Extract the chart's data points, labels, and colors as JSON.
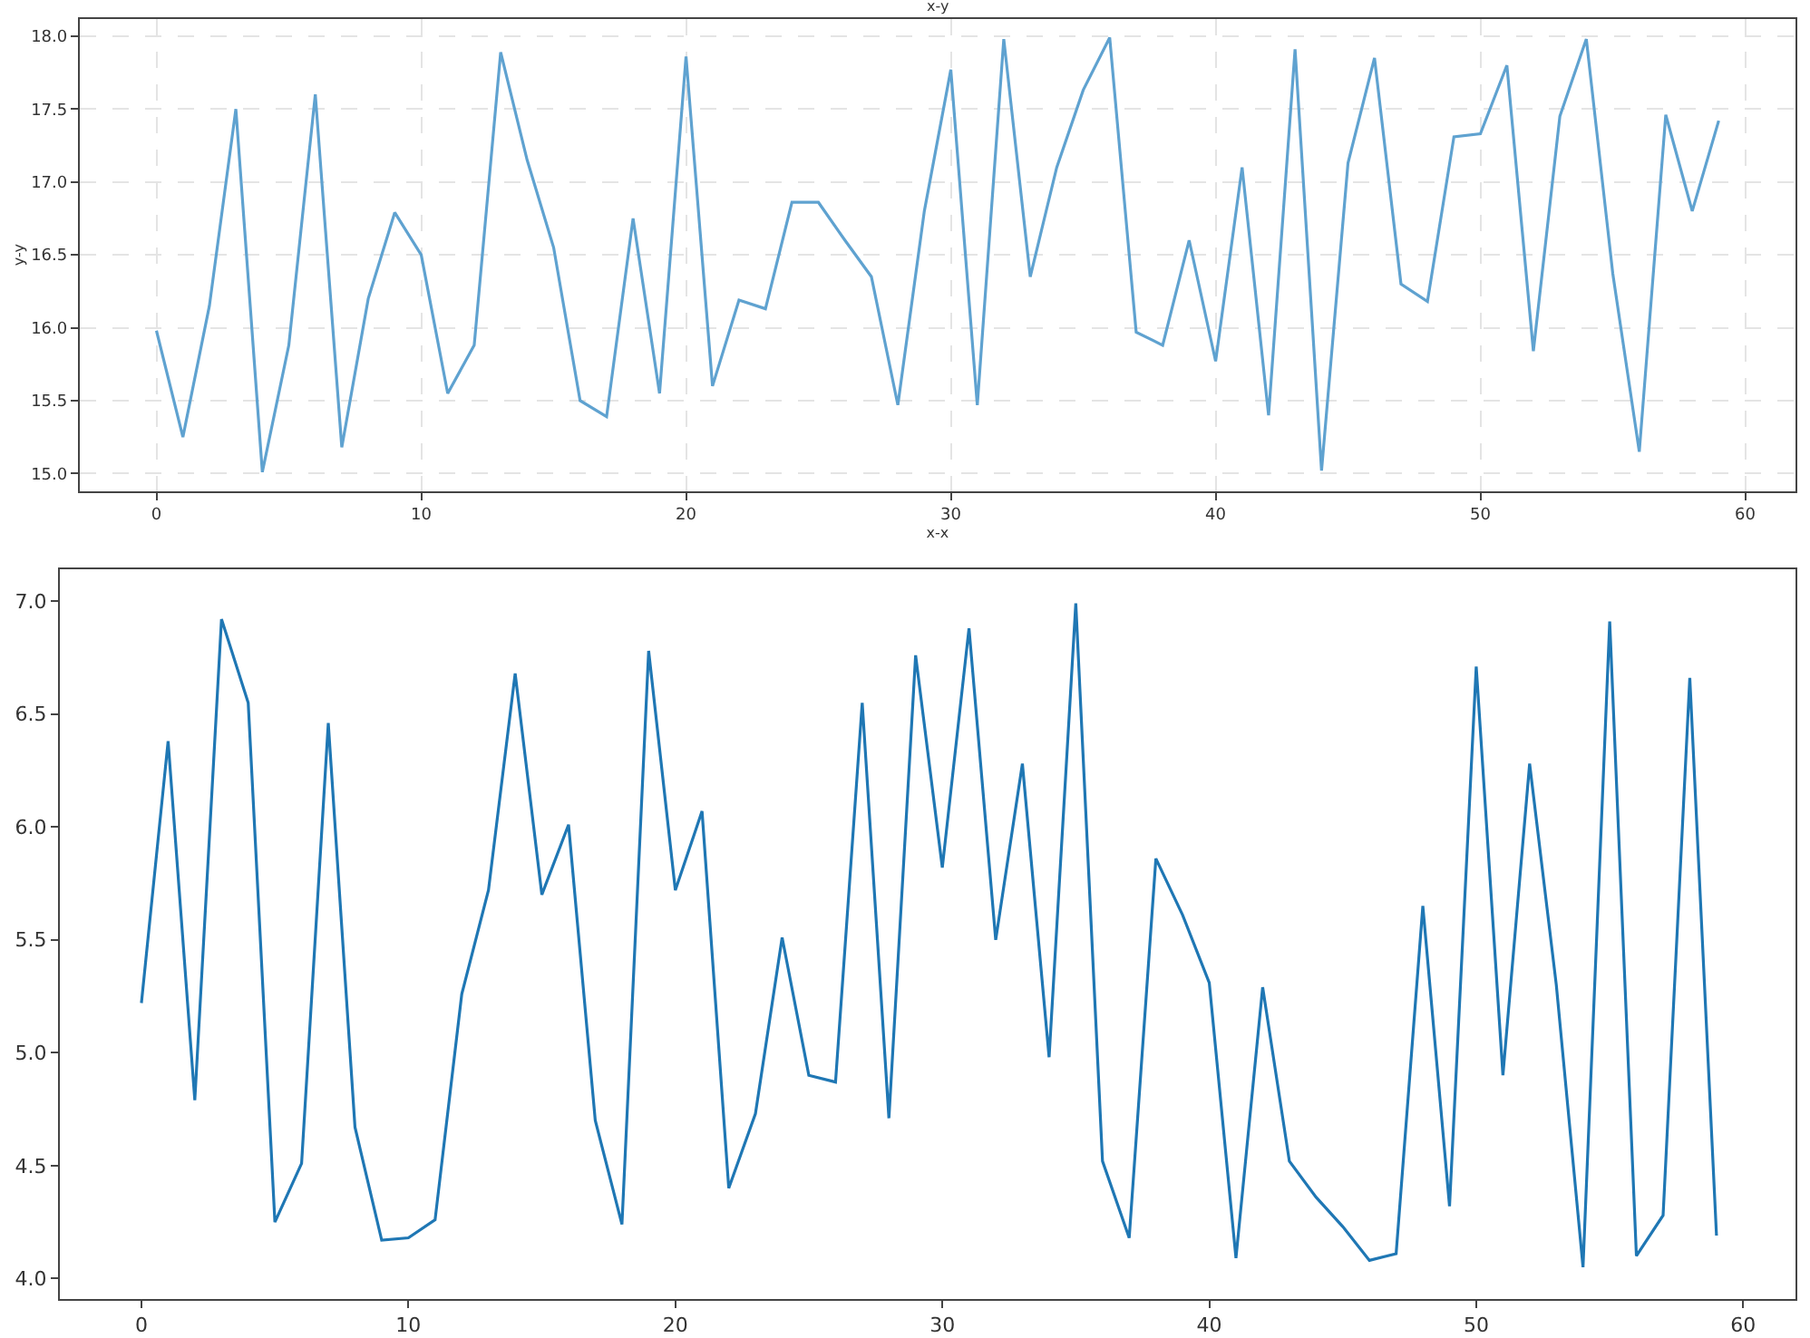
{
  "chart_data": [
    {
      "type": "line",
      "title": "x-y",
      "xlabel": "x-x",
      "ylabel": "y-y",
      "grid": true,
      "x": [
        0,
        1,
        2,
        3,
        4,
        5,
        6,
        7,
        8,
        9,
        10,
        11,
        12,
        13,
        14,
        15,
        16,
        17,
        18,
        19,
        20,
        21,
        22,
        23,
        24,
        25,
        26,
        27,
        28,
        29,
        30,
        31,
        32,
        33,
        34,
        35,
        36,
        37,
        38,
        39,
        40,
        41,
        42,
        43,
        44,
        45,
        46,
        47,
        48,
        49,
        50,
        51,
        52,
        53,
        54,
        55,
        56,
        57,
        58,
        59
      ],
      "series": [
        {
          "color": "#5fa2d0",
          "values": [
            15.98,
            15.25,
            16.15,
            17.5,
            15.01,
            15.88,
            17.6,
            15.18,
            16.2,
            16.79,
            16.5,
            15.55,
            15.88,
            17.89,
            17.15,
            16.55,
            15.5,
            15.39,
            16.75,
            15.55,
            17.86,
            15.6,
            16.19,
            16.13,
            16.86,
            16.86,
            16.6,
            16.35,
            15.47,
            16.8,
            17.77,
            15.47,
            17.98,
            16.35,
            17.1,
            17.63,
            17.99,
            15.97,
            15.88,
            16.6,
            15.77,
            17.1,
            15.4,
            17.91,
            15.02,
            17.13,
            17.85,
            16.3,
            16.18,
            17.31,
            17.33,
            17.8,
            15.84,
            17.45,
            17.98,
            16.37,
            15.15,
            17.46,
            16.8,
            17.42
          ]
        }
      ],
      "xlim": [
        -2.9,
        61.9
      ],
      "ylim": [
        14.88,
        18.12
      ],
      "xticks": [
        0,
        10,
        20,
        30,
        40,
        50,
        60
      ],
      "yticks": [
        {
          "value": 15,
          "label": "15.0"
        },
        15.5,
        {
          "value": 16,
          "label": "16.0"
        },
        16.5,
        {
          "value": 17,
          "label": "17.0"
        },
        17.5,
        {
          "value": 18,
          "label": "18.0"
        }
      ]
    },
    {
      "type": "line",
      "grid": false,
      "x": [
        0,
        1,
        2,
        3,
        4,
        5,
        6,
        7,
        8,
        9,
        10,
        11,
        12,
        13,
        14,
        15,
        16,
        17,
        18,
        19,
        20,
        21,
        22,
        23,
        24,
        25,
        26,
        27,
        28,
        29,
        30,
        31,
        32,
        33,
        34,
        35,
        36,
        37,
        38,
        39,
        40,
        41,
        42,
        43,
        44,
        45,
        46,
        47,
        48,
        49,
        50,
        51,
        52,
        53,
        54,
        55,
        56,
        57,
        58,
        59
      ],
      "series": [
        {
          "color": "#1f77b4",
          "values": [
            5.22,
            6.38,
            4.79,
            6.92,
            6.55,
            4.25,
            4.51,
            6.46,
            4.67,
            4.17,
            4.18,
            4.26,
            5.26,
            5.72,
            6.68,
            5.7,
            6.01,
            4.7,
            4.24,
            6.78,
            5.72,
            6.07,
            4.4,
            4.73,
            5.51,
            4.9,
            4.87,
            6.55,
            4.71,
            6.76,
            5.82,
            6.88,
            5.5,
            6.28,
            4.98,
            6.99,
            4.52,
            4.18,
            5.86,
            5.61,
            5.31,
            4.09,
            5.29,
            4.52,
            4.36,
            4.23,
            4.08,
            4.11,
            5.65,
            4.32,
            6.71,
            4.9,
            6.28,
            5.3,
            4.05,
            6.91,
            4.1,
            4.28,
            6.66,
            4.19
          ]
        }
      ],
      "xlim": [
        -3.06,
        61.96
      ],
      "ylim": [
        3.91,
        7.14
      ],
      "xticks": [
        0,
        10,
        20,
        30,
        40,
        50,
        60
      ],
      "yticks": [
        {
          "value": 4,
          "label": "4.0"
        },
        4.5,
        {
          "value": 5,
          "label": "5.0"
        },
        5.5,
        {
          "value": 6,
          "label": "6.0"
        },
        6.5,
        {
          "value": 7,
          "label": "7.0"
        }
      ]
    }
  ]
}
